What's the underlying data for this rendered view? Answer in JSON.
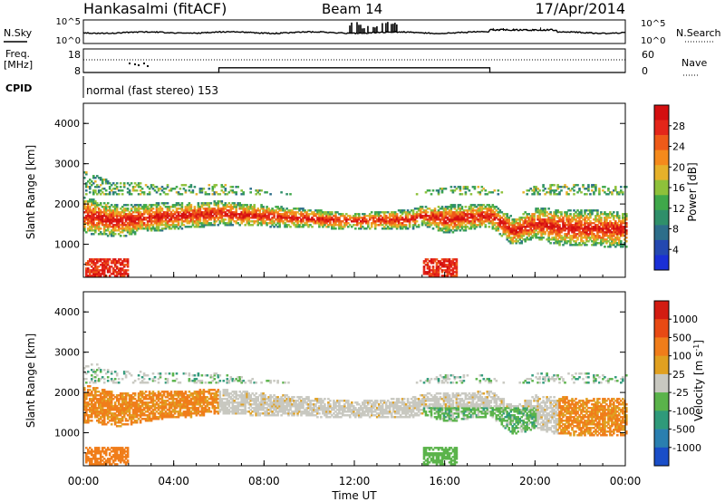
{
  "header": {
    "station": "Hankasalmi (fitACF)",
    "beam": "Beam 14",
    "date": "17/Apr/2014"
  },
  "left_labels": {
    "nsky": "N.Sky",
    "freq": "Freq.",
    "freq_unit": "[MHz]",
    "cpid": "CPID"
  },
  "right_labels": {
    "nsearch": "N.Search",
    "nave": "Nave"
  },
  "cpid_text": "normal (fast stereo) 153",
  "colors": {
    "power": [
      "#1a2fd6",
      "#2448b0",
      "#2d6e8a",
      "#2f8f6a",
      "#3fa84a",
      "#8ec13a",
      "#e6b12a",
      "#f58a1c",
      "#ee5a18",
      "#e4261a",
      "#d40f10"
    ],
    "velocity": [
      "#1a4ec8",
      "#2a7fb0",
      "#2f9a7a",
      "#5ab34a",
      "#c8c8c0",
      "#e0a020",
      "#f07d1a",
      "#e84a14",
      "#d31c12"
    ],
    "gray_scatter": "#c7c6bf"
  },
  "chart_data": [
    {
      "name": "nsky-nsearch",
      "type": "line",
      "yticks_left": [
        "10^5",
        "10^0"
      ],
      "yticks_right": [
        "10^5",
        "10^0"
      ]
    },
    {
      "name": "freq-nave",
      "type": "line",
      "yticks_left": [
        "18",
        "8"
      ],
      "yticks_right": [
        "60",
        "0"
      ],
      "freq_steps": [
        {
          "x": 0,
          "y": 8
        },
        {
          "x": 6,
          "y": 8
        },
        {
          "x": 6,
          "y": 10
        },
        {
          "x": 18,
          "y": 10
        },
        {
          "x": 18,
          "y": 8
        },
        {
          "x": 24,
          "y": 8
        }
      ]
    },
    {
      "name": "power",
      "type": "heatmap",
      "ylabel": "Slant Range [km]",
      "yticks": [
        "4000",
        "3000",
        "2000",
        "1000"
      ],
      "ylim": [
        180,
        4500
      ],
      "xlim": [
        0,
        24
      ],
      "colorbar": {
        "label": "Power [dB]",
        "ticks": [
          "28",
          "24",
          "20",
          "16",
          "12",
          "8",
          "4"
        ]
      }
    },
    {
      "name": "velocity",
      "type": "heatmap",
      "ylabel": "Slant Range [km]",
      "yticks": [
        "4000",
        "3000",
        "2000",
        "1000"
      ],
      "ylim": [
        180,
        4500
      ],
      "xlim": [
        0,
        24
      ],
      "xlabel": "Time UT",
      "xticks": [
        "00:00",
        "04:00",
        "08:00",
        "12:00",
        "16:00",
        "20:00",
        "00:00"
      ],
      "colorbar": {
        "label": "Velocity [m s",
        "label_sup": "-1",
        "label_end": "]",
        "ticks": [
          "1000",
          "500",
          "100",
          "25",
          "-25",
          "-100",
          "-500",
          "-1000"
        ]
      }
    }
  ]
}
